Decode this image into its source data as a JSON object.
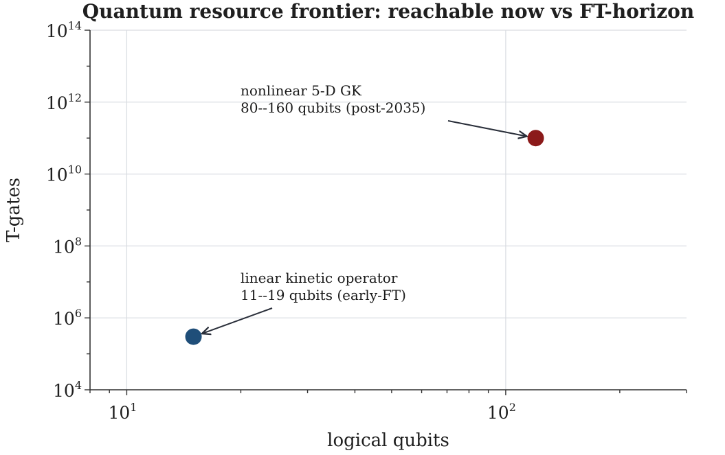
{
  "chart_data": {
    "type": "scatter",
    "title": "Quantum resource frontier: reachable now vs FT-horizon",
    "xlabel": "logical qubits",
    "ylabel": "T-gates",
    "xscale": "log",
    "yscale": "log",
    "xlim": [
      8,
      300
    ],
    "ylim": [
      10000,
      100000000000000
    ],
    "grid": true,
    "xticks": [
      {
        "value": 10,
        "base": "10",
        "exp": "1"
      },
      {
        "value": 100,
        "base": "10",
        "exp": "2"
      }
    ],
    "yticks": [
      {
        "value": 10000,
        "base": "10",
        "exp": "4"
      },
      {
        "value": 1000000,
        "base": "10",
        "exp": "6"
      },
      {
        "value": 100000000,
        "base": "10",
        "exp": "8"
      },
      {
        "value": 10000000000,
        "base": "10",
        "exp": "10"
      },
      {
        "value": 1000000000000,
        "base": "10",
        "exp": "12"
      },
      {
        "value": 100000000000000,
        "base": "10",
        "exp": "14"
      }
    ],
    "points": [
      {
        "x": 15,
        "y": 300000,
        "color": "#1f4e79",
        "annotation_lines": [
          "linear kinetic operator",
          "11--19 qubits (early-FT)"
        ]
      },
      {
        "x": 120,
        "y": 100000000000,
        "color": "#8b1a1a",
        "annotation_lines": [
          "nonlinear 5-D GK",
          "80--160 qubits (post-2035)"
        ]
      }
    ]
  }
}
